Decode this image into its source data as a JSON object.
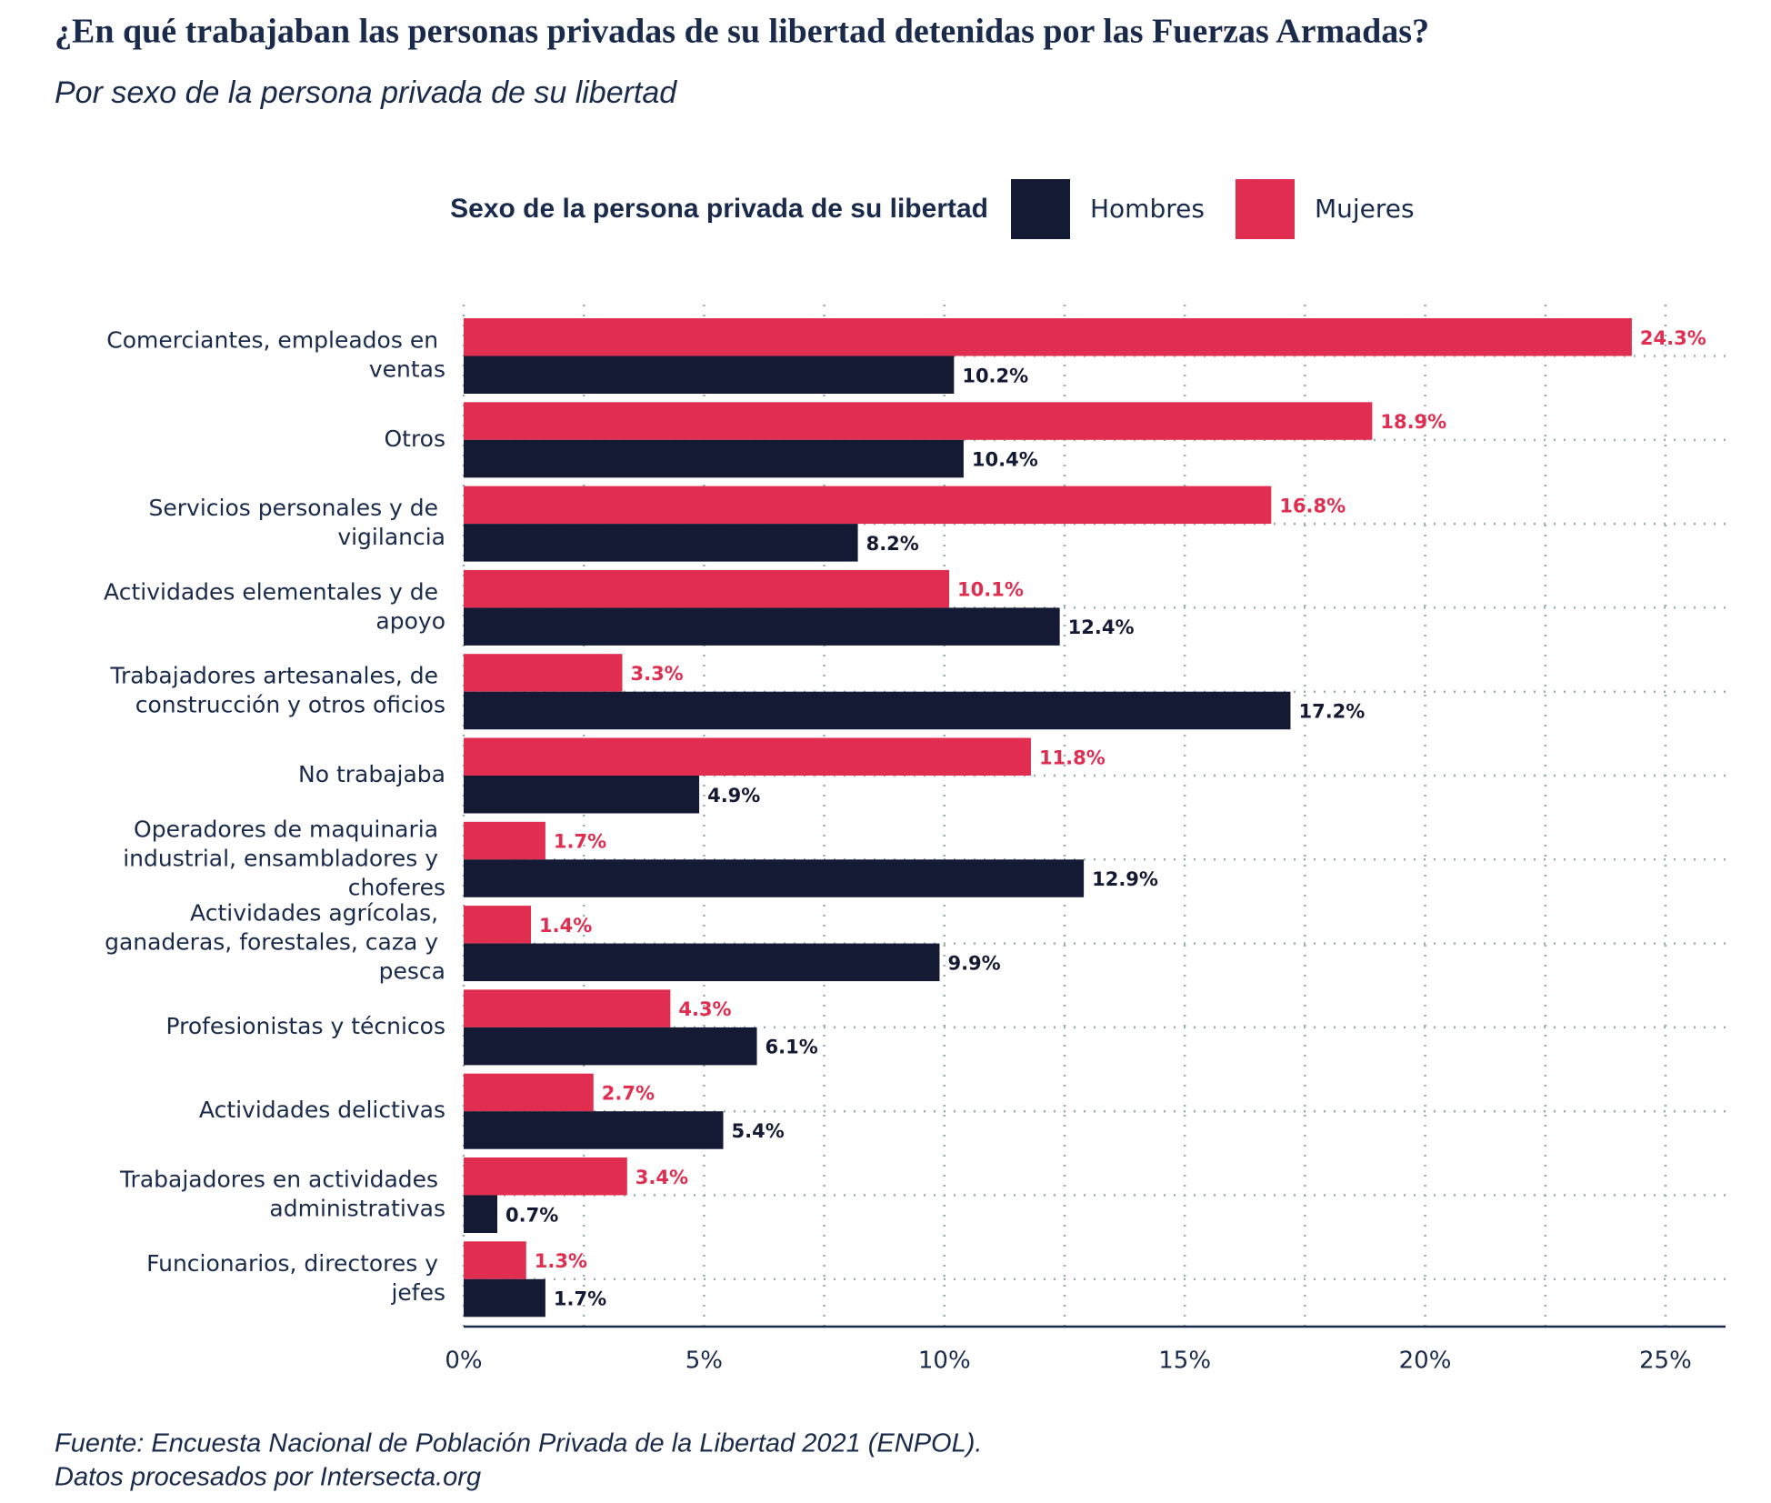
{
  "chart_data": {
    "type": "bar",
    "orientation": "horizontal",
    "title": "¿En qué trabajaban las personas privadas de su libertad detenidas por las Fuerzas Armadas?",
    "subtitle": "Por sexo de la persona privada de su libertad",
    "legend_title": "Sexo de la persona privada de su libertad",
    "categories": [
      "Comerciantes, empleados en ventas",
      "Otros",
      "Servicios personales y de vigilancia",
      "Actividades elementales y de apoyo",
      "Trabajadores artesanales, de construcción y otros oficios",
      "No trabajaba",
      "Operadores de maquinaria industrial, ensambladores y choferes",
      "Actividades agrícolas, ganaderas, forestales, caza y pesca",
      "Profesionistas y técnicos",
      "Actividades delictivas",
      "Trabajadores en actividades administrativas",
      "Funcionarios, directores y jefes"
    ],
    "series": [
      {
        "name": "Hombres",
        "color": "#141a33",
        "values": [
          10.2,
          10.4,
          8.2,
          12.4,
          17.2,
          4.9,
          12.9,
          9.9,
          6.1,
          5.4,
          0.7,
          1.7
        ],
        "value_labels": [
          "10.2%",
          "10.4%",
          "8.2%",
          "12.4%",
          "17.2%",
          "4.9%",
          "12.9%",
          "9.9%",
          "6.1%",
          "5.4%",
          "0.7%",
          "1.7%"
        ]
      },
      {
        "name": "Mujeres",
        "color": "#e02d50",
        "values": [
          24.3,
          18.9,
          16.8,
          10.1,
          3.3,
          11.8,
          1.7,
          1.4,
          4.3,
          2.7,
          3.4,
          1.3
        ],
        "value_labels": [
          "24.3%",
          "18.9%",
          "16.8%",
          "10.1%",
          "3.3%",
          "11.8%",
          "1.7%",
          "1.4%",
          "4.3%",
          "2.7%",
          "3.4%",
          "1.3%"
        ]
      }
    ],
    "xlim": [
      0,
      26.25
    ],
    "xticks": [
      {
        "value": 0,
        "label": "0%"
      },
      {
        "value": 5,
        "label": "5%"
      },
      {
        "value": 10,
        "label": "10%"
      },
      {
        "value": 15,
        "label": "15%"
      },
      {
        "value": 20,
        "label": "20%"
      },
      {
        "value": 25,
        "label": "25%"
      }
    ],
    "xminorticks": [
      2.5,
      7.5,
      12.5,
      17.5,
      22.5
    ],
    "grid": true,
    "legend_position": "top",
    "source": [
      "Fuente: Encuesta Nacional de Población Privada de la Libertad 2021 (ENPOL).",
      "Datos procesados por Intersecta.org"
    ]
  }
}
